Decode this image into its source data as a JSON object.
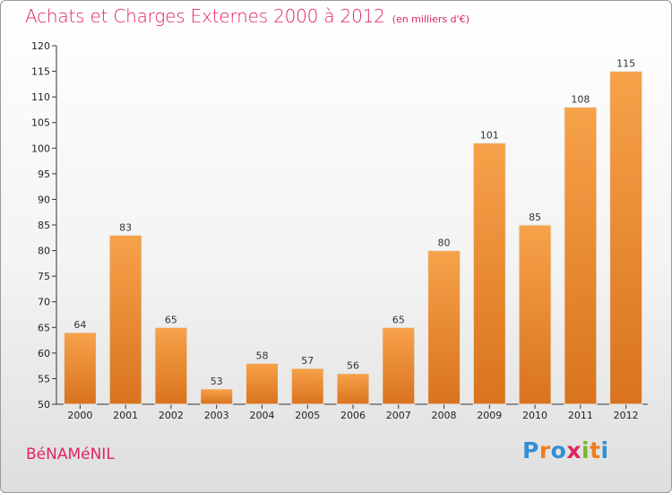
{
  "chart_data": {
    "type": "bar",
    "title": "Achats et Charges Externes 2000 à 2012",
    "subtitle": "(en milliers d'€)",
    "categories": [
      "2000",
      "2001",
      "2002",
      "2003",
      "2004",
      "2005",
      "2006",
      "2007",
      "2008",
      "2009",
      "2010",
      "2011",
      "2012"
    ],
    "values": [
      64,
      83,
      65,
      53,
      58,
      57,
      56,
      65,
      80,
      101,
      85,
      108,
      115
    ],
    "ylim": [
      50,
      120
    ],
    "yticks": [
      50,
      55,
      60,
      65,
      70,
      75,
      80,
      85,
      90,
      95,
      100,
      105,
      110,
      115,
      120
    ],
    "grid": false,
    "bar_color_top": "#f7a24a",
    "bar_color_bottom": "#d9731f"
  },
  "footer": {
    "town": "BéNAMéNIL",
    "logo": "Proxiti",
    "logo_colors": [
      "#2f8fd8",
      "#f07d1a",
      "#2f8fd8",
      "#e0245e",
      "#7ab929",
      "#f07d1a",
      "#2f8fd8"
    ]
  }
}
